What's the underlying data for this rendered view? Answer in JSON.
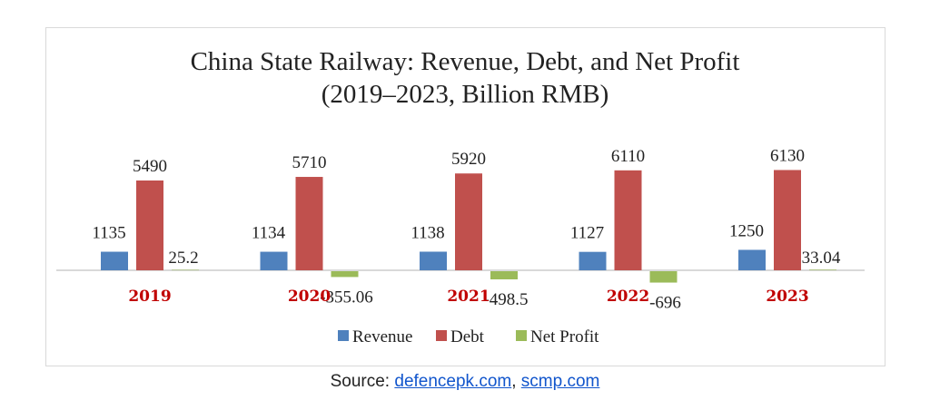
{
  "chart_data": {
    "type": "bar",
    "title": "China State Railway: Revenue, Debt, and Net Profit",
    "subtitle": "(2019–2023, Billion RMB)",
    "categories": [
      "2019",
      "2020",
      "2021",
      "2022",
      "2023"
    ],
    "series": [
      {
        "name": "Revenue",
        "color": "#4f81bd",
        "values": [
          1135,
          1134,
          1138,
          1127,
          1250
        ],
        "labels": [
          "1135",
          "1134",
          "1138",
          "1127",
          "1250"
        ]
      },
      {
        "name": "Debt",
        "color": "#c0504d",
        "values": [
          5490,
          5710,
          5920,
          6110,
          6130
        ],
        "labels": [
          "5490",
          "5710",
          "5920",
          "6110",
          "6130"
        ]
      },
      {
        "name": "Net Profit",
        "color": "#9bbb59",
        "values": [
          25.2,
          -355.06,
          -498.5,
          -696,
          33.04
        ],
        "labels": [
          "25.2",
          "-355.06",
          "-498.5",
          "-696",
          "33.04"
        ]
      }
    ],
    "category_label_color": "#c00000",
    "legend": "bottom",
    "grid": false
  },
  "source": {
    "prefix": "Source: ",
    "link1": "defencepk.com",
    "sep": ", ",
    "link2": "scmp.com"
  }
}
